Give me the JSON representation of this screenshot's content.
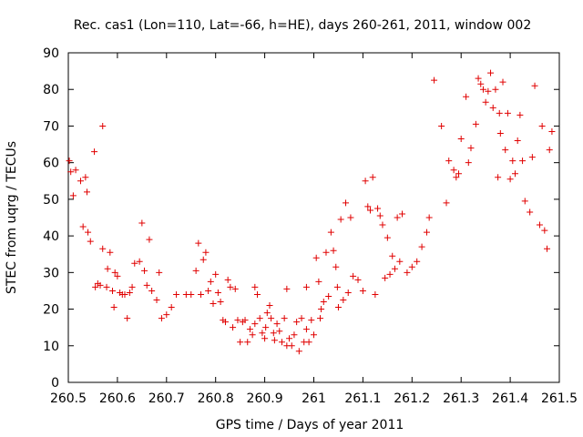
{
  "chart_data": {
    "type": "scatter",
    "title": "Rec. cas1 (Lon=110, Lat=-66, h=HE), days 260-261, 2011, window 002",
    "xlabel": "GPS time / Days of year 2011",
    "ylabel": "STEC from uqrg / TECUs",
    "xlim": [
      260.5,
      261.5
    ],
    "ylim": [
      0,
      90
    ],
    "x_ticks": [
      260.5,
      260.6,
      260.7,
      260.8,
      260.9,
      261.0,
      261.1,
      261.2,
      261.3,
      261.4,
      261.5
    ],
    "x_tick_labels": [
      "260.5",
      "260.6",
      "260.7",
      "260.8",
      "260.9",
      "261",
      "261.1",
      "261.2",
      "261.3",
      "261.4",
      "261.5"
    ],
    "y_ticks": [
      0,
      10,
      20,
      30,
      40,
      50,
      60,
      70,
      80,
      90
    ],
    "y_tick_labels": [
      "0",
      "10",
      "20",
      "30",
      "40",
      "50",
      "60",
      "70",
      "80",
      "90"
    ],
    "marker": "+",
    "marker_color": "#e00000",
    "grid": false,
    "points": [
      [
        260.502,
        60.5
      ],
      [
        260.505,
        57.5
      ],
      [
        260.51,
        51
      ],
      [
        260.515,
        58
      ],
      [
        260.525,
        55
      ],
      [
        260.53,
        42.5
      ],
      [
        260.535,
        56
      ],
      [
        260.538,
        52
      ],
      [
        260.54,
        41
      ],
      [
        260.545,
        38.5
      ],
      [
        260.553,
        63
      ],
      [
        260.555,
        26
      ],
      [
        260.56,
        27
      ],
      [
        260.565,
        26.5
      ],
      [
        260.57,
        70
      ],
      [
        260.57,
        36.5
      ],
      [
        260.578,
        26
      ],
      [
        260.58,
        31
      ],
      [
        260.585,
        35.5
      ],
      [
        260.59,
        25
      ],
      [
        260.593,
        20.5
      ],
      [
        260.595,
        30
      ],
      [
        260.6,
        29
      ],
      [
        260.605,
        24.5
      ],
      [
        260.61,
        24
      ],
      [
        260.615,
        24
      ],
      [
        260.62,
        17.5
      ],
      [
        260.625,
        24.5
      ],
      [
        260.63,
        26
      ],
      [
        260.635,
        32.5
      ],
      [
        260.645,
        33
      ],
      [
        260.65,
        43.5
      ],
      [
        260.655,
        30.5
      ],
      [
        260.66,
        26.5
      ],
      [
        260.665,
        39
      ],
      [
        260.67,
        25
      ],
      [
        260.68,
        22.5
      ],
      [
        260.685,
        30
      ],
      [
        260.69,
        17.5
      ],
      [
        260.7,
        18.5
      ],
      [
        260.71,
        20.5
      ],
      [
        260.72,
        24
      ],
      [
        260.74,
        24
      ],
      [
        260.75,
        24
      ],
      [
        260.76,
        30.5
      ],
      [
        260.765,
        38
      ],
      [
        260.77,
        24
      ],
      [
        260.775,
        33.5
      ],
      [
        260.78,
        35.5
      ],
      [
        260.785,
        25
      ],
      [
        260.79,
        27.5
      ],
      [
        260.795,
        21.5
      ],
      [
        260.8,
        29.5
      ],
      [
        260.805,
        24.5
      ],
      [
        260.81,
        22
      ],
      [
        260.815,
        17
      ],
      [
        260.82,
        16.5
      ],
      [
        260.825,
        28
      ],
      [
        260.83,
        26
      ],
      [
        260.835,
        15
      ],
      [
        260.84,
        25.5
      ],
      [
        260.845,
        17
      ],
      [
        260.85,
        11
      ],
      [
        260.855,
        16.5
      ],
      [
        260.86,
        17
      ],
      [
        260.865,
        11
      ],
      [
        260.87,
        14.5
      ],
      [
        260.875,
        13
      ],
      [
        260.88,
        26
      ],
      [
        260.88,
        16
      ],
      [
        260.885,
        24
      ],
      [
        260.89,
        17.5
      ],
      [
        260.895,
        13.5
      ],
      [
        260.9,
        12
      ],
      [
        260.902,
        15
      ],
      [
        260.905,
        19
      ],
      [
        260.91,
        21
      ],
      [
        260.913,
        17.5
      ],
      [
        260.918,
        13.5
      ],
      [
        260.92,
        11.5
      ],
      [
        260.925,
        16
      ],
      [
        260.93,
        14
      ],
      [
        260.935,
        11
      ],
      [
        260.94,
        17.5
      ],
      [
        260.945,
        25.5
      ],
      [
        260.945,
        10
      ],
      [
        260.95,
        12
      ],
      [
        260.955,
        10
      ],
      [
        260.96,
        13
      ],
      [
        260.965,
        16.5
      ],
      [
        260.97,
        8.5
      ],
      [
        260.975,
        17.5
      ],
      [
        260.98,
        11
      ],
      [
        260.985,
        26
      ],
      [
        260.985,
        14.5
      ],
      [
        260.99,
        11
      ],
      [
        260.995,
        17
      ],
      [
        261.0,
        13
      ],
      [
        261.005,
        34
      ],
      [
        261.01,
        27.5
      ],
      [
        261.013,
        17.5
      ],
      [
        261.015,
        20
      ],
      [
        261.02,
        22
      ],
      [
        261.025,
        35.5
      ],
      [
        261.03,
        23.5
      ],
      [
        261.035,
        41
      ],
      [
        261.04,
        36
      ],
      [
        261.045,
        31.5
      ],
      [
        261.048,
        26
      ],
      [
        261.05,
        20.5
      ],
      [
        261.055,
        44.5
      ],
      [
        261.06,
        22.5
      ],
      [
        261.065,
        49
      ],
      [
        261.07,
        24.5
      ],
      [
        261.075,
        45
      ],
      [
        261.08,
        29
      ],
      [
        261.09,
        28
      ],
      [
        261.1,
        25
      ],
      [
        261.105,
        55
      ],
      [
        261.11,
        48
      ],
      [
        261.115,
        47
      ],
      [
        261.12,
        56
      ],
      [
        261.125,
        24
      ],
      [
        261.13,
        47.5
      ],
      [
        261.135,
        45.5
      ],
      [
        261.14,
        43
      ],
      [
        261.145,
        28.5
      ],
      [
        261.15,
        39.5
      ],
      [
        261.155,
        29.5
      ],
      [
        261.16,
        34.5
      ],
      [
        261.165,
        31
      ],
      [
        261.17,
        45
      ],
      [
        261.175,
        33
      ],
      [
        261.18,
        46
      ],
      [
        261.19,
        30
      ],
      [
        261.2,
        31.5
      ],
      [
        261.21,
        33
      ],
      [
        261.22,
        37
      ],
      [
        261.23,
        41
      ],
      [
        261.235,
        45
      ],
      [
        261.245,
        82.5
      ],
      [
        261.26,
        70
      ],
      [
        261.27,
        49
      ],
      [
        261.275,
        60.5
      ],
      [
        261.285,
        58
      ],
      [
        261.29,
        56
      ],
      [
        261.295,
        57
      ],
      [
        261.3,
        66.5
      ],
      [
        261.31,
        78
      ],
      [
        261.315,
        60
      ],
      [
        261.32,
        64
      ],
      [
        261.33,
        70.5
      ],
      [
        261.335,
        83
      ],
      [
        261.34,
        81.5
      ],
      [
        261.345,
        80
      ],
      [
        261.35,
        76.5
      ],
      [
        261.355,
        79.5
      ],
      [
        261.36,
        84.5
      ],
      [
        261.365,
        75
      ],
      [
        261.37,
        80
      ],
      [
        261.375,
        56
      ],
      [
        261.378,
        73.5
      ],
      [
        261.38,
        68
      ],
      [
        261.385,
        82
      ],
      [
        261.39,
        63.5
      ],
      [
        261.395,
        73.5
      ],
      [
        261.4,
        55.5
      ],
      [
        261.405,
        60.5
      ],
      [
        261.41,
        57
      ],
      [
        261.415,
        66
      ],
      [
        261.42,
        73
      ],
      [
        261.425,
        60.5
      ],
      [
        261.43,
        49.5
      ],
      [
        261.44,
        46.5
      ],
      [
        261.445,
        61.5
      ],
      [
        261.45,
        81
      ],
      [
        261.46,
        43
      ],
      [
        261.465,
        70
      ],
      [
        261.47,
        41.5
      ],
      [
        261.475,
        36.5
      ],
      [
        261.48,
        63.5
      ],
      [
        261.485,
        68.5
      ]
    ]
  }
}
